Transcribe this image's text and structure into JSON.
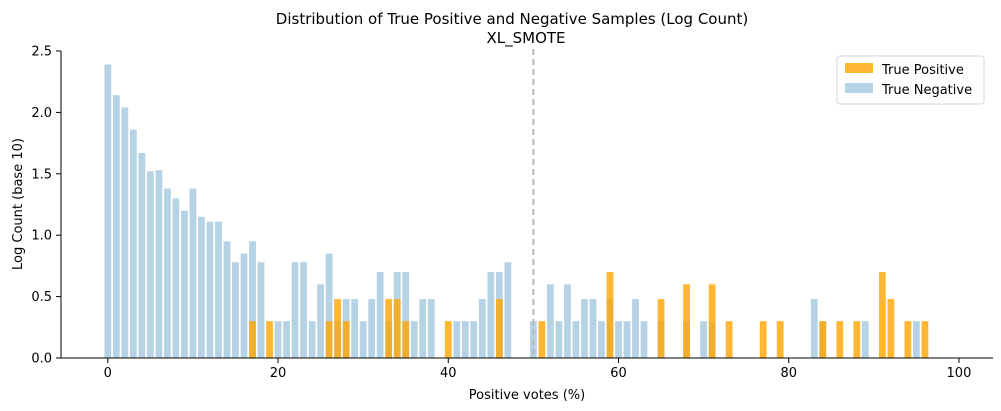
{
  "chart_data": {
    "type": "bar",
    "title": "Distribution of True Positive and Negative Samples (Log Count)",
    "subtitle": "XL_SMOTE",
    "xlabel": "Positive votes (%)",
    "ylabel": "Log Count (base 10)",
    "xlim": [
      -5.5,
      104
    ],
    "ylim": [
      0,
      2.5
    ],
    "xticks": [
      0,
      20,
      40,
      60,
      80,
      100
    ],
    "yticks": [
      "0.0",
      "0.5",
      "1.0",
      "1.5",
      "2.0",
      "2.5"
    ],
    "threshold": 50,
    "legend_position": "top-right",
    "grid": false,
    "series": [
      {
        "name": "True Positive",
        "color": "#FFA500",
        "points": [
          [
            17,
            0.3
          ],
          [
            19,
            0.3
          ],
          [
            26,
            0.3
          ],
          [
            27,
            0.48
          ],
          [
            28,
            0.3
          ],
          [
            33,
            0.48
          ],
          [
            34,
            0.48
          ],
          [
            35,
            0.3
          ],
          [
            40,
            0.3
          ],
          [
            46,
            0.48
          ],
          [
            51,
            0.3
          ],
          [
            59,
            0.7
          ],
          [
            65,
            0.48
          ],
          [
            68,
            0.6
          ],
          [
            71,
            0.6
          ],
          [
            73,
            0.3
          ],
          [
            77,
            0.3
          ],
          [
            79,
            0.3
          ],
          [
            84,
            0.3
          ],
          [
            86,
            0.3
          ],
          [
            88,
            0.3
          ],
          [
            91,
            0.7
          ],
          [
            92,
            0.48
          ],
          [
            94,
            0.3
          ],
          [
            96,
            0.3
          ]
        ]
      },
      {
        "name": "True Negative",
        "color": "#A9CBE0",
        "points": [
          [
            0,
            2.39
          ],
          [
            1,
            2.14
          ],
          [
            2,
            2.04
          ],
          [
            3,
            1.86
          ],
          [
            4,
            1.67
          ],
          [
            5,
            1.52
          ],
          [
            6,
            1.53
          ],
          [
            7,
            1.38
          ],
          [
            8,
            1.3
          ],
          [
            9,
            1.2
          ],
          [
            10,
            1.38
          ],
          [
            11,
            1.15
          ],
          [
            12,
            1.11
          ],
          [
            13,
            1.11
          ],
          [
            14,
            0.95
          ],
          [
            15,
            0.78
          ],
          [
            16,
            0.85
          ],
          [
            17,
            0.95
          ],
          [
            18,
            0.78
          ],
          [
            20,
            0.3
          ],
          [
            21,
            0.3
          ],
          [
            22,
            0.78
          ],
          [
            23,
            0.78
          ],
          [
            24,
            0.3
          ],
          [
            25,
            0.6
          ],
          [
            26,
            0.85
          ],
          [
            27,
            0.3
          ],
          [
            28,
            0.48
          ],
          [
            29,
            0.48
          ],
          [
            30,
            0.3
          ],
          [
            31,
            0.48
          ],
          [
            32,
            0.7
          ],
          [
            33,
            0.3
          ],
          [
            34,
            0.7
          ],
          [
            35,
            0.7
          ],
          [
            36,
            0.3
          ],
          [
            37,
            0.48
          ],
          [
            38,
            0.48
          ],
          [
            41,
            0.3
          ],
          [
            42,
            0.3
          ],
          [
            43,
            0.3
          ],
          [
            44,
            0.48
          ],
          [
            45,
            0.7
          ],
          [
            46,
            0.7
          ],
          [
            47,
            0.78
          ],
          [
            50,
            0.3
          ],
          [
            52,
            0.6
          ],
          [
            53,
            0.3
          ],
          [
            54,
            0.6
          ],
          [
            55,
            0.3
          ],
          [
            56,
            0.48
          ],
          [
            57,
            0.48
          ],
          [
            58,
            0.3
          ],
          [
            59,
            0.48
          ],
          [
            60,
            0.3
          ],
          [
            61,
            0.3
          ],
          [
            62,
            0.48
          ],
          [
            63,
            0.3
          ],
          [
            65,
            0.3
          ],
          [
            68,
            0.3
          ],
          [
            70,
            0.3
          ],
          [
            71,
            0.3
          ],
          [
            83,
            0.48
          ],
          [
            84,
            0.3
          ],
          [
            89,
            0.3
          ],
          [
            95,
            0.3
          ]
        ]
      }
    ]
  }
}
